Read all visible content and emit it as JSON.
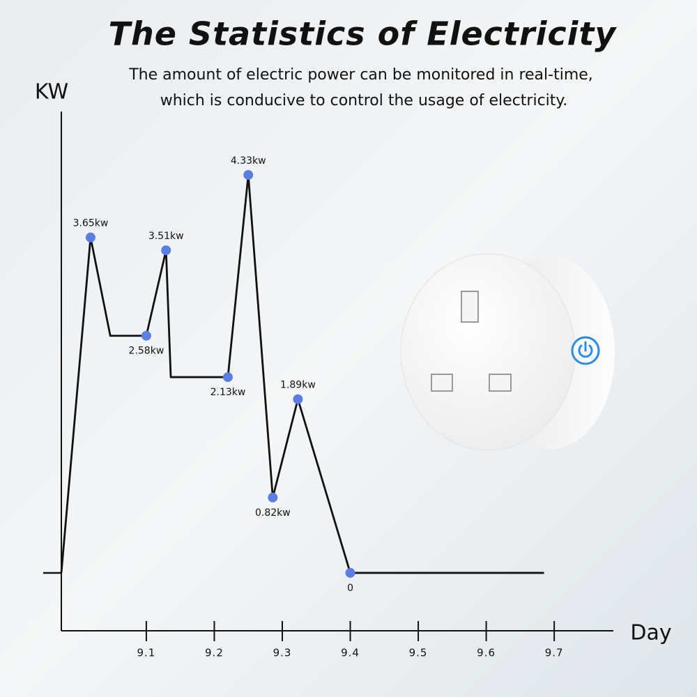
{
  "chart_data": {
    "type": "line",
    "title": "The Statistics of Electricity",
    "subtitle": [
      "The amount of electric power can be monitored in real-time,",
      "which is conducive to control the usage of electricity."
    ],
    "y_label": "KW",
    "x_label": "Day",
    "x": [
      8.975,
      9.018,
      9.047,
      9.1,
      9.129,
      9.136,
      9.22,
      9.25,
      9.286,
      9.323,
      9.4,
      9.685
    ],
    "values": [
      0,
      3.65,
      2.58,
      2.58,
      3.51,
      2.13,
      2.13,
      4.33,
      0.82,
      1.89,
      0,
      0
    ],
    "value_labels": [
      null,
      "3.65kw",
      null,
      "2.58kw",
      "3.51kw",
      null,
      "2.13kw",
      "4.33kw",
      "0.82kw",
      "1.89kw",
      "0",
      null
    ],
    "color": "#111111",
    "marker_color": "#5b7fe0",
    "xlim": [
      8.975,
      9.787
    ],
    "ylim": [
      -0.63,
      5.02
    ],
    "xticks": [
      9.1,
      9.2,
      9.3,
      9.4,
      9.5,
      9.6,
      9.7
    ]
  }
}
